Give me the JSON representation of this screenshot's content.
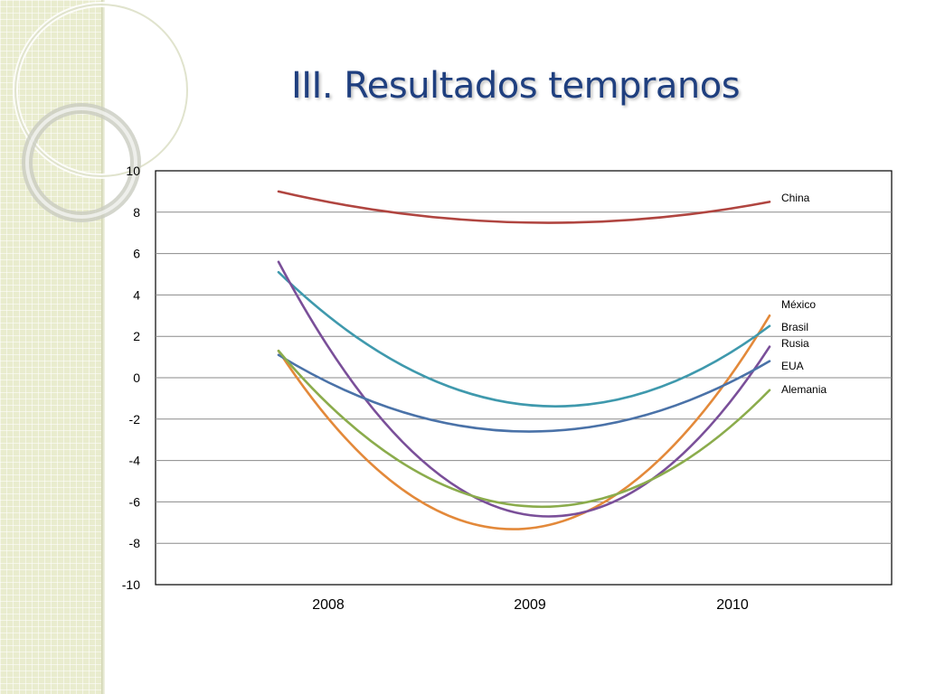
{
  "slide": {
    "title": "III. Resultados tempranos"
  },
  "colors": {
    "china": "#b04540",
    "mexico": "#e3893a",
    "brasil": "#3f99ad",
    "rusia": "#7a4f99",
    "eua": "#4a72a8",
    "alemania": "#8bac4c",
    "title": "#1f3f7f",
    "side_panel": "#e9ecce"
  },
  "chart_data": {
    "type": "line",
    "title": "",
    "xlabel": "",
    "ylabel": "",
    "categories": [
      "2008",
      "2009",
      "2010"
    ],
    "ylim": [
      -10,
      10
    ],
    "yticks": [
      10,
      8,
      6,
      4,
      2,
      0,
      -2,
      -4,
      -6,
      -8,
      -10
    ],
    "grid": true,
    "legend": "inline-right",
    "series": [
      {
        "name": "China",
        "values": [
          9.0,
          7.5,
          8.5
        ]
      },
      {
        "name": "México",
        "values": [
          1.3,
          -7.3,
          3.0
        ]
      },
      {
        "name": "Brasil",
        "values": [
          5.1,
          -1.3,
          2.5
        ]
      },
      {
        "name": "Rusia",
        "values": [
          5.6,
          -6.6,
          1.5
        ]
      },
      {
        "name": "EUA",
        "values": [
          1.1,
          -2.6,
          0.8
        ]
      },
      {
        "name": "Alemania",
        "values": [
          1.3,
          -6.2,
          -0.6
        ]
      }
    ]
  }
}
